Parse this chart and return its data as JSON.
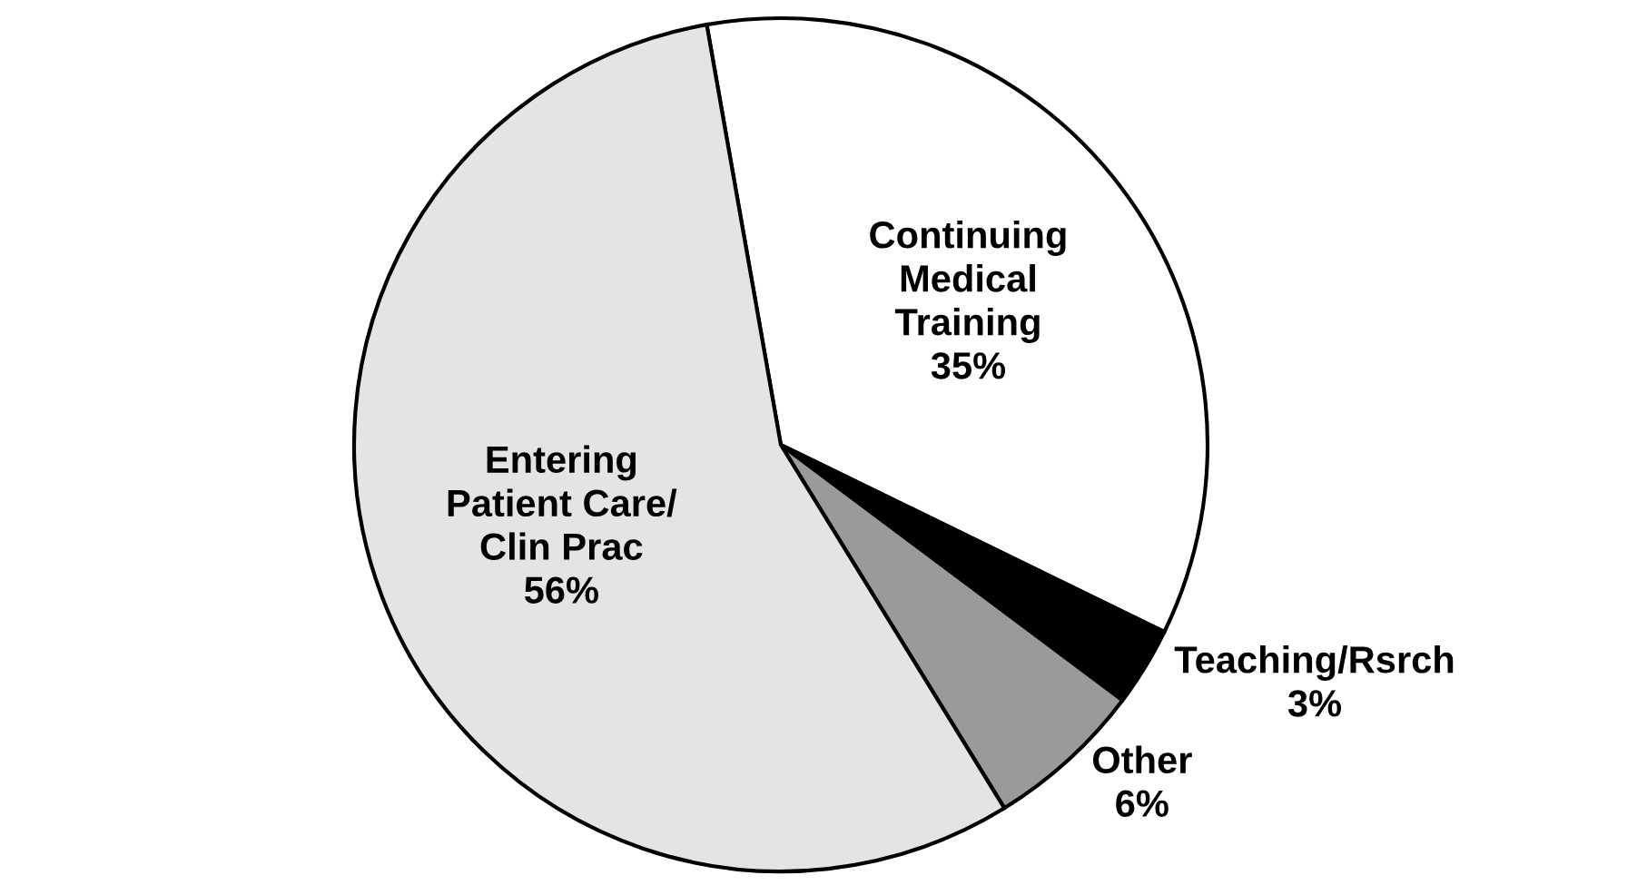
{
  "chart_data": {
    "type": "pie",
    "categories": [
      "Continuing\nMedical\nTraining",
      "Teaching/Rsrch",
      "Other",
      "Entering\nPatient Care/\nClin Prac"
    ],
    "values": [
      35,
      3,
      6,
      56
    ],
    "value_labels": [
      "35%",
      "3%",
      "6%",
      "56%"
    ],
    "colors": [
      "#ffffff",
      "#000000",
      "#9a9a9a",
      "#e4e4e4"
    ]
  }
}
